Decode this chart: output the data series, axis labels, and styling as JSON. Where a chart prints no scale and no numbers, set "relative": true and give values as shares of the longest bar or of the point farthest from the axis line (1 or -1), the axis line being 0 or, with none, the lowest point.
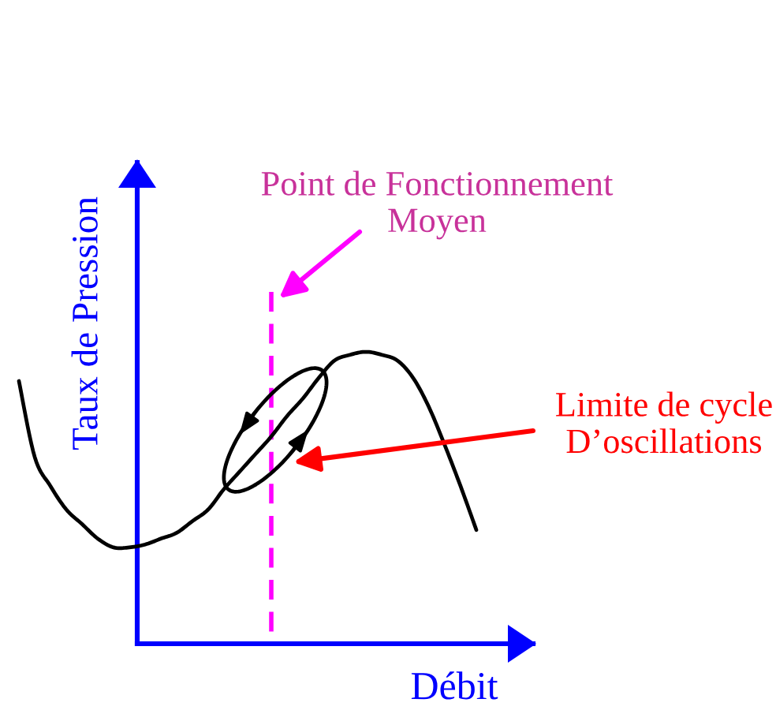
{
  "chart_data": {
    "type": "line",
    "relative": true,
    "xlabel": "Débit",
    "ylabel": "Taux de Pression",
    "categories": [
      null,
      null,
      null,
      null,
      null,
      null,
      null,
      null,
      null,
      null,
      null,
      null,
      null,
      null,
      null,
      null,
      null,
      null,
      null,
      null,
      null,
      null,
      null,
      null,
      null,
      null,
      null,
      null,
      null,
      null
    ],
    "series": [
      {
        "color": "#000000",
        "values": [
          0.9,
          0.64,
          0.54,
          0.46,
          0.41,
          0.36,
          0.33,
          0.33,
          0.34,
          0.36,
          0.38,
          0.42,
          0.46,
          0.53,
          0.59,
          0.65,
          0.71,
          0.78,
          0.84,
          0.91,
          0.97,
          0.99,
          1.0,
          0.99,
          0.97,
          0.91,
          0.81,
          0.68,
          0.54,
          0.39
        ]
      }
    ],
    "annotations": [
      "Point de Fonctionnement\nMoyen",
      "Limite de cycle\nD’oscillations"
    ]
  }
}
